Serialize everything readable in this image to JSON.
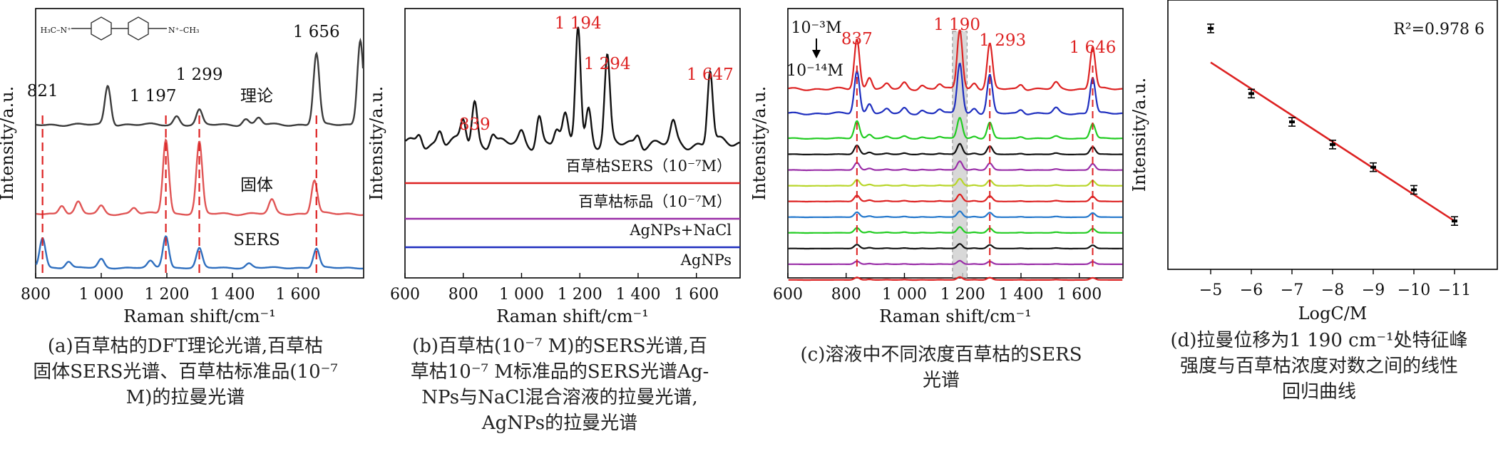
{
  "chart_data": [
    {
      "type": "line",
      "panel": "a",
      "xlabel": "Raman shift/cm⁻¹",
      "ylabel": "Intensity/a.u.",
      "xlim": [
        800,
        1800
      ],
      "xticks": [
        "800",
        "1 000",
        "1 200",
        "1 400",
        "1 600"
      ],
      "series": [
        {
          "name": "理论",
          "color": "#3c3c3c",
          "peaks": [
            [
              1020,
              0.55
            ],
            [
              1230,
              0.12
            ],
            [
              1299,
              0.2
            ],
            [
              1440,
              0.08
            ],
            [
              1480,
              0.1
            ],
            [
              1656,
              1.0
            ],
            [
              1790,
              1.2
            ]
          ]
        },
        {
          "name": "固体",
          "color": "#e05555",
          "peaks": [
            [
              880,
              0.12
            ],
            [
              930,
              0.15
            ],
            [
              1000,
              0.1
            ],
            [
              1100,
              0.08
            ],
            [
              1197,
              1.0
            ],
            [
              1299,
              0.95
            ],
            [
              1520,
              0.18
            ],
            [
              1650,
              0.45
            ]
          ]
        },
        {
          "name": "SERS",
          "color": "#2f6fbf",
          "peaks": [
            [
              821,
              0.7
            ],
            [
              900,
              0.15
            ],
            [
              1000,
              0.2
            ],
            [
              1150,
              0.15
            ],
            [
              1197,
              0.75
            ],
            [
              1299,
              0.45
            ],
            [
              1450,
              0.1
            ],
            [
              1656,
              0.45
            ]
          ]
        }
      ],
      "peak_labels": [
        "821",
        "1 197",
        "1 299",
        "1 656"
      ],
      "dashed_lines": [
        821,
        1197,
        1299,
        1656
      ],
      "inset": {
        "left_label": "H₃C–N⁺",
        "right_label": "N⁺–CH₃"
      }
    },
    {
      "type": "line",
      "panel": "b",
      "xlabel": "Raman shift/cm⁻¹",
      "ylabel": "Intensity/a.u.",
      "xlim": [
        600,
        1750
      ],
      "xticks": [
        "600",
        "800",
        "1 000",
        "1 200",
        "1 400",
        "1 600"
      ],
      "series": [
        {
          "name": "百草枯SERS（10⁻⁷M）",
          "color": "#111111",
          "peaks": [
            [
              650,
              0.1
            ],
            [
              720,
              0.12
            ],
            [
              800,
              0.2
            ],
            [
              839,
              0.35
            ],
            [
              900,
              0.1
            ],
            [
              1000,
              0.08
            ],
            [
              1060,
              0.25
            ],
            [
              1120,
              0.12
            ],
            [
              1150,
              0.2
            ],
            [
              1194,
              1.0
            ],
            [
              1230,
              0.3
            ],
            [
              1294,
              0.7
            ],
            [
              1400,
              0.1
            ],
            [
              1520,
              0.15
            ],
            [
              1647,
              0.62
            ]
          ]
        },
        {
          "name": "百草枯标品（10⁻⁷M）",
          "color": "#dd2222",
          "peaks": []
        },
        {
          "name": "AgNPs+NaCl",
          "color": "#9a2fa8",
          "peaks": []
        },
        {
          "name": "AgNPs",
          "color": "#1f2fbf",
          "peaks": []
        }
      ],
      "peak_labels": [
        "839",
        "1 194",
        "1 294",
        "1 647"
      ],
      "peak_label_color": "#dd2222"
    },
    {
      "type": "line",
      "panel": "c",
      "xlabel": "Raman shift/cm⁻¹",
      "ylabel": "Intensity/a.u.",
      "xlim": [
        600,
        1750
      ],
      "xticks": [
        "600",
        "800",
        "1 000",
        "1 200",
        "1 400",
        "1 600"
      ],
      "concentration_top": "10⁻³M",
      "concentration_bottom": "10⁻¹⁴M",
      "peak_labels": [
        "837",
        "1 190",
        "1 293",
        "1 646"
      ],
      "peak_positions": [
        837,
        1190,
        1293,
        1646
      ],
      "series_colors": [
        "#dd2222",
        "#1f2fbf",
        "#22cc22",
        "#111111",
        "#9a2fa8",
        "#b8d62a",
        "#dd2222",
        "#2277cc",
        "#22cc22",
        "#111111",
        "#9a2fa8",
        "#dd2222"
      ],
      "series_scale": [
        1.0,
        0.85,
        0.35,
        0.18,
        0.15,
        0.12,
        0.12,
        0.1,
        0.1,
        0.08,
        0.06,
        0.05
      ]
    },
    {
      "type": "scatter",
      "panel": "d",
      "xlabel": "LogC/M",
      "ylabel": "Intensity/a.u.",
      "categories": [
        "−5",
        "−6",
        "−7",
        "−8",
        "−9",
        "−10",
        "−11"
      ],
      "x": [
        -5,
        -6,
        -7,
        -8,
        -9,
        -10,
        -11
      ],
      "y": [
        0.95,
        0.72,
        0.62,
        0.54,
        0.46,
        0.38,
        0.27
      ],
      "fit_line": {
        "x": [
          -5,
          -11
        ],
        "y": [
          0.83,
          0.27
        ],
        "color": "#dd2222"
      },
      "annotation": "R²=0.978 6"
    }
  ],
  "captions": {
    "a": [
      "(a)百草枯的DFT理论光谱,百草枯",
      "固体SERS光谱、百草枯标准品(10⁻⁷",
      "M)的拉曼光谱"
    ],
    "b": [
      "(b)百草枯(10⁻⁷ M)的SERS光谱,百",
      "草枯10⁻⁷ M标准品的SERS光谱Ag-",
      "NPs与NaCl混合溶液的拉曼光谱,",
      "AgNPs的拉曼光谱"
    ],
    "c": [
      "(c)溶液中不同浓度百草枯的SERS",
      "光谱"
    ],
    "d": [
      "(d)拉曼位移为1 190 cm⁻¹处特征峰",
      "强度与百草枯浓度对数之间的线性",
      "回归曲线"
    ]
  }
}
